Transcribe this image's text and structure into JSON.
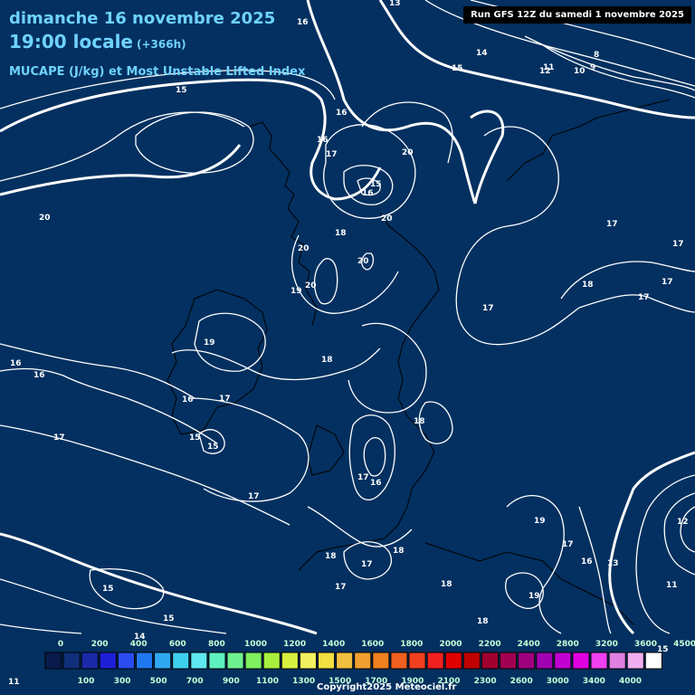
{
  "header": {
    "date": "dimanche 16 novembre 2025",
    "time": "19:00 locale",
    "offset": "(+366h)",
    "parameter": "MUCAPE (J/kg) et Most Unstable Lifted Index"
  },
  "run_info": "Run GFS 12Z du samedi 1 novembre 2025",
  "copyright": "Copyright2025 Meteociel.fr",
  "colors": {
    "sea_background": "#033060",
    "contour": "#ffffff",
    "title_text": "#6fd3ff"
  },
  "contour_labels": [
    "13",
    "16",
    "14",
    "15",
    "8",
    "11",
    "12",
    "10",
    "9",
    "15",
    "16",
    "16",
    "17",
    "20",
    "15",
    "16",
    "20",
    "20",
    "18",
    "20",
    "19",
    "20",
    "17",
    "17",
    "18",
    "17",
    "17",
    "17",
    "20",
    "16",
    "16",
    "19",
    "18",
    "16",
    "17",
    "17",
    "15",
    "15",
    "18",
    "17",
    "16",
    "17",
    "19",
    "17",
    "18",
    "18",
    "16",
    "13",
    "17",
    "18",
    "17",
    "19",
    "11",
    "12",
    "15",
    "18",
    "15",
    "15",
    "14",
    "11"
  ],
  "legend": {
    "colors": [
      "#0a1a4a",
      "#102f7a",
      "#1a2aa8",
      "#1f1fd8",
      "#2a4cf0",
      "#1f78f0",
      "#2fa8f0",
      "#3fd0f0",
      "#5fe8f0",
      "#5ff0c0",
      "#6ff090",
      "#7ff060",
      "#a8f040",
      "#d8f040",
      "#f0f060",
      "#f0e040",
      "#f0c040",
      "#f0a030",
      "#f08020",
      "#f06020",
      "#f04020",
      "#f02020",
      "#e00000",
      "#c00000",
      "#a00030",
      "#a00050",
      "#a00080",
      "#a000b0",
      "#c000d0",
      "#e000e0",
      "#f040f0",
      "#e080e0",
      "#f0b0f0",
      "#ffffff"
    ],
    "top_labels": [
      "0",
      "200",
      "400",
      "600",
      "800",
      "1000",
      "1200",
      "1400",
      "1600",
      "1800",
      "2000",
      "2200",
      "2400",
      "2800",
      "3200",
      "3600",
      "4500"
    ],
    "bottom_labels": [
      "100",
      "300",
      "500",
      "700",
      "900",
      "1100",
      "1300",
      "1500",
      "1700",
      "1900",
      "2100",
      "2300",
      "2600",
      "3000",
      "3400",
      "4000"
    ]
  }
}
